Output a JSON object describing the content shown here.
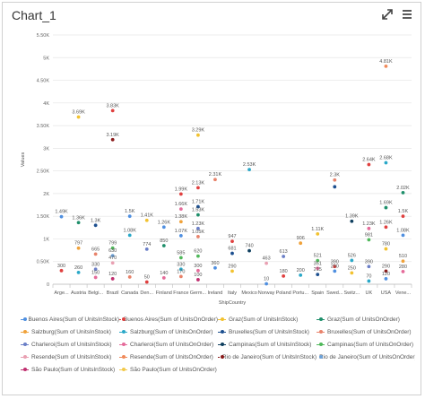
{
  "window": {
    "title": "Chart_1"
  },
  "icons": {
    "expand": "expand-arrows-icon",
    "menu": "hamburger-menu-icon"
  },
  "chart_data": {
    "type": "scatter",
    "xlabel": "ShipCountry",
    "ylabel": "Values",
    "ylim": [
      0,
      5500
    ],
    "yticks": [
      0,
      500,
      1000,
      1500,
      2000,
      2500,
      3000,
      3500,
      4000,
      4500,
      5000,
      5500
    ],
    "ytick_labels": [
      "0",
      "0.50K",
      "1K",
      "1.50K",
      "2K",
      "2.50K",
      "3K",
      "3.50K",
      "4K",
      "4.50K",
      "5K",
      "5.50K"
    ],
    "categories": [
      "Arge...",
      "Austria",
      "Belgi...",
      "Brazil",
      "Canada",
      "Den...",
      "Finland",
      "France",
      "Germ...",
      "Ireland",
      "Italy",
      "Mexico",
      "Norway",
      "Poland",
      "Portu...",
      "Spain",
      "Swed...",
      "Switz...",
      "UK",
      "USA",
      "Vene..."
    ],
    "grid": true,
    "legend_position": "bottom",
    "series": [
      {
        "name": "Buenos Aires(Sum of UnitsInStock)",
        "color": "#4f8fe0"
      },
      {
        "name": "Buenos Aires(Sum of UnitsOnOrder)",
        "color": "#e0403f"
      },
      {
        "name": "Graz(Sum of UnitsInStock)",
        "color": "#f2c230"
      },
      {
        "name": "Graz(Sum of UnitsOnOrder)",
        "color": "#1f8f6b"
      },
      {
        "name": "Salzburg(Sum of UnitsInStock)",
        "color": "#f0a23a"
      },
      {
        "name": "Salzburg(Sum of UnitsOnOrder)",
        "color": "#2aa8c8"
      },
      {
        "name": "Bruxelles(Sum of UnitsInStock)",
        "color": "#1c4f8f"
      },
      {
        "name": "Bruxelles(Sum of UnitsOnOrder)",
        "color": "#e8826a"
      },
      {
        "name": "Charleroi(Sum of UnitsInStock)",
        "color": "#6b7fc7"
      },
      {
        "name": "Charleroi(Sum of UnitsOnOrder)",
        "color": "#e56b9a"
      },
      {
        "name": "Campinas(Sum of UnitsInStock)",
        "color": "#0f3f5f"
      },
      {
        "name": "Campinas(Sum of UnitsOnOrder)",
        "color": "#4fb85a"
      },
      {
        "name": "Resende(Sum of UnitsInStock)",
        "color": "#e9a0b2"
      },
      {
        "name": "Resende(Sum of UnitsOnOrder)",
        "color": "#f08a5a"
      },
      {
        "name": "Rio de Janeiro(Sum of UnitsInStock)",
        "color": "#8a1a1a"
      },
      {
        "name": "Rio de Janeiro(Sum of UnitsOnOrder)",
        "color": "#6aa0d8"
      },
      {
        "name": "São Paulo(Sum of UnitsInStock)",
        "color": "#c03070"
      },
      {
        "name": "São Paulo(Sum of UnitsOnOrder)",
        "color": "#f2c94c"
      }
    ],
    "points": [
      {
        "x": "Arge...",
        "y": 1490,
        "label": "1.49K",
        "color": "#4f8fe0"
      },
      {
        "x": "Arge...",
        "y": 300,
        "label": "300",
        "color": "#e0403f"
      },
      {
        "x": "Austria",
        "y": 3690,
        "label": "3.69K",
        "color": "#f2c230"
      },
      {
        "x": "Austria",
        "y": 1360,
        "label": "1.36K",
        "color": "#1f8f6b"
      },
      {
        "x": "Austria",
        "y": 797,
        "label": "797",
        "color": "#f0a23a"
      },
      {
        "x": "Austria",
        "y": 260,
        "label": "260",
        "color": "#2aa8c8"
      },
      {
        "x": "Belgi...",
        "y": 1300,
        "label": "1.3K",
        "color": "#1c4f8f"
      },
      {
        "x": "Belgi...",
        "y": 665,
        "label": "665",
        "color": "#e8826a"
      },
      {
        "x": "Belgi...",
        "y": 330,
        "label": "330",
        "color": "#6b7fc7"
      },
      {
        "x": "Belgi...",
        "y": 150,
        "label": "150",
        "color": "#e56b9a"
      },
      {
        "x": "Brazil",
        "y": 3830,
        "label": "3.83K",
        "color": "#e0403f"
      },
      {
        "x": "Brazil",
        "y": 3190,
        "label": "3.19K",
        "color": "#8a1a1a"
      },
      {
        "x": "Brazil",
        "y": 799,
        "label": "799",
        "color": "#4fb85a"
      },
      {
        "x": "Brazil",
        "y": 630,
        "label": "630",
        "color": "#6aa0d8"
      },
      {
        "x": "Brazil",
        "y": 470,
        "label": "470",
        "color": "#e9a0b2"
      },
      {
        "x": "Brazil",
        "y": 120,
        "label": "120",
        "color": "#c03070"
      },
      {
        "x": "Canada",
        "y": 1500,
        "label": "1.5K",
        "color": "#4f8fe0"
      },
      {
        "x": "Canada",
        "y": 1080,
        "label": "1.08K",
        "color": "#2aa8c8"
      },
      {
        "x": "Canada",
        "y": 160,
        "label": "160",
        "color": "#e8826a"
      },
      {
        "x": "Den...",
        "y": 1410,
        "label": "1.41K",
        "color": "#f2c230"
      },
      {
        "x": "Den...",
        "y": 774,
        "label": "774",
        "color": "#6b7fc7"
      },
      {
        "x": "Den...",
        "y": 50,
        "label": "50",
        "color": "#e0403f"
      },
      {
        "x": "Finland",
        "y": 1260,
        "label": "1.26K",
        "color": "#4f8fe0"
      },
      {
        "x": "Finland",
        "y": 850,
        "label": "850",
        "color": "#1f8f6b"
      },
      {
        "x": "Finland",
        "y": 140,
        "label": "140",
        "color": "#e56b9a"
      },
      {
        "x": "France",
        "y": 1990,
        "label": "1.99K",
        "color": "#e0403f"
      },
      {
        "x": "France",
        "y": 1660,
        "label": "1.66K",
        "color": "#e56b9a"
      },
      {
        "x": "France",
        "y": 1380,
        "label": "1.38K",
        "color": "#f0a23a"
      },
      {
        "x": "France",
        "y": 1070,
        "label": "1.07K",
        "color": "#4f8fe0"
      },
      {
        "x": "France",
        "y": 585,
        "label": "585",
        "color": "#4fb85a"
      },
      {
        "x": "France",
        "y": 330,
        "label": "330",
        "color": "#2aa8c8"
      },
      {
        "x": "France",
        "y": 170,
        "label": "170",
        "color": "#e8826a"
      },
      {
        "x": "Germ...",
        "y": 3290,
        "label": "3.29K",
        "color": "#f2c230"
      },
      {
        "x": "Germ...",
        "y": 2130,
        "label": "2.13K",
        "color": "#e0403f"
      },
      {
        "x": "Germ...",
        "y": 1710,
        "label": "1.71K",
        "color": "#1c4f8f"
      },
      {
        "x": "Germ...",
        "y": 1530,
        "label": "1.53K",
        "color": "#1f8f6b"
      },
      {
        "x": "Germ...",
        "y": 1230,
        "label": "1.23K",
        "color": "#6b7fc7"
      },
      {
        "x": "Germ...",
        "y": 1050,
        "label": "1.05K",
        "color": "#e8826a"
      },
      {
        "x": "Germ...",
        "y": 620,
        "label": "620",
        "color": "#4fb85a"
      },
      {
        "x": "Germ...",
        "y": 300,
        "label": "300",
        "color": "#e56b9a"
      },
      {
        "x": "Germ...",
        "y": 100,
        "label": "100",
        "color": "#c03070"
      },
      {
        "x": "Ireland",
        "y": 2310,
        "label": "2.31K",
        "color": "#e8826a"
      },
      {
        "x": "Ireland",
        "y": 360,
        "label": "360",
        "color": "#4f8fe0"
      },
      {
        "x": "Italy",
        "y": 947,
        "label": "947",
        "color": "#e0403f"
      },
      {
        "x": "Italy",
        "y": 681,
        "label": "681",
        "color": "#1c4f8f"
      },
      {
        "x": "Italy",
        "y": 290,
        "label": "290",
        "color": "#f2c230"
      },
      {
        "x": "Mexico",
        "y": 2530,
        "label": "2.53K",
        "color": "#2aa8c8"
      },
      {
        "x": "Mexico",
        "y": 740,
        "label": "740",
        "color": "#0f3f5f"
      },
      {
        "x": "Norway",
        "y": 463,
        "label": "463",
        "color": "#e9a0b2"
      },
      {
        "x": "Norway",
        "y": 10,
        "label": "10",
        "color": "#4f8fe0"
      },
      {
        "x": "Poland",
        "y": 613,
        "label": "613",
        "color": "#6b7fc7"
      },
      {
        "x": "Poland",
        "y": 180,
        "label": "180",
        "color": "#e0403f"
      },
      {
        "x": "Portu...",
        "y": 906,
        "label": "906",
        "color": "#f0a23a"
      },
      {
        "x": "Portu...",
        "y": 200,
        "label": "200",
        "color": "#2aa8c8"
      },
      {
        "x": "Spain",
        "y": 1110,
        "label": "1.11K",
        "color": "#f2c230"
      },
      {
        "x": "Spain",
        "y": 521,
        "label": "521",
        "color": "#4fb85a"
      },
      {
        "x": "Spain",
        "y": 351,
        "label": "351",
        "color": "#e56b9a"
      },
      {
        "x": "Spain",
        "y": 215,
        "label": "215",
        "color": "#1c4f8f"
      },
      {
        "x": "Swed...",
        "y": 2300,
        "label": "2.3K",
        "color": "#e8826a"
      },
      {
        "x": "Swed...",
        "y": 2150,
        "label": "",
        "color": "#1c4f8f"
      },
      {
        "x": "Swed...",
        "y": 390,
        "label": "390",
        "color": "#e0403f"
      },
      {
        "x": "Swed...",
        "y": 290,
        "label": "290",
        "color": "#4f8fe0"
      },
      {
        "x": "Switz...",
        "y": 1390,
        "label": "1.39K",
        "color": "#0f3f5f"
      },
      {
        "x": "Switz...",
        "y": 526,
        "label": "526",
        "color": "#2aa8c8"
      },
      {
        "x": "Switz...",
        "y": 250,
        "label": "250",
        "color": "#f2c230"
      },
      {
        "x": "UK",
        "y": 2640,
        "label": "2.64K",
        "color": "#e0403f"
      },
      {
        "x": "UK",
        "y": 1230,
        "label": "1.23K",
        "color": "#e56b9a"
      },
      {
        "x": "UK",
        "y": 981,
        "label": "981",
        "color": "#4fb85a"
      },
      {
        "x": "UK",
        "y": 390,
        "label": "390",
        "color": "#6b7fc7"
      },
      {
        "x": "UK",
        "y": 70,
        "label": "70",
        "color": "#2aa8c8"
      },
      {
        "x": "USA",
        "y": 4810,
        "label": "4.81K",
        "color": "#f08a5a"
      },
      {
        "x": "USA",
        "y": 2680,
        "label": "2.68K",
        "color": "#2aa8c8"
      },
      {
        "x": "USA",
        "y": 1690,
        "label": "1.69K",
        "color": "#1f8f6b"
      },
      {
        "x": "USA",
        "y": 1260,
        "label": "1.26K",
        "color": "#e0403f"
      },
      {
        "x": "USA",
        "y": 780,
        "label": "780",
        "color": "#f2c230"
      },
      {
        "x": "USA",
        "y": 290,
        "label": "290",
        "color": "#8a1a1a"
      },
      {
        "x": "USA",
        "y": 120,
        "label": "120",
        "color": "#4f8fe0"
      },
      {
        "x": "Vene...",
        "y": 2020,
        "label": "2.02K",
        "color": "#1f8f6b"
      },
      {
        "x": "Vene...",
        "y": 1500,
        "label": "1.5K",
        "color": "#e0403f"
      },
      {
        "x": "Vene...",
        "y": 1080,
        "label": "1.08K",
        "color": "#4f8fe0"
      },
      {
        "x": "Vene...",
        "y": 510,
        "label": "510",
        "color": "#f0a23a"
      },
      {
        "x": "Vene...",
        "y": 280,
        "label": "280",
        "color": "#e56b9a"
      }
    ]
  }
}
